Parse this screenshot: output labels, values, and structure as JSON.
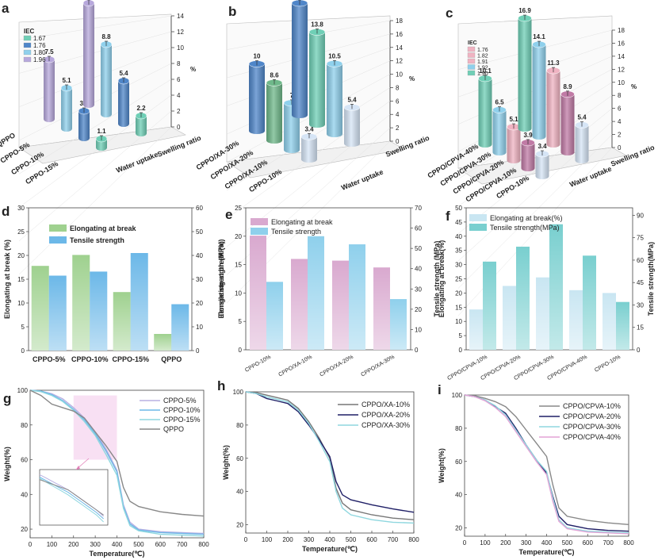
{
  "colors": {
    "purple": "#b7a8dc",
    "blue": "#4f86c9",
    "lightblue": "#8fd0ec",
    "teal": "#6fcfb6",
    "green": "#6fb88a",
    "pink": "#f0b3c2",
    "rose": "#c07aa5",
    "paleblue": "#d6e5f6",
    "elong_d": "#9fd18f",
    "tens_d": "#6cb8e8",
    "elong_e": "#d9a9cf",
    "tens_e": "#8fd0ec",
    "elong_f": "#c9e6f2",
    "tens_f": "#79cfcf",
    "pinkshade": "#f6d8f0"
  },
  "chart_data": [
    {
      "id": "a",
      "panel_label": "a",
      "type": "bar",
      "legend_title": "IEC",
      "legend": [
        "1.67",
        "1.76",
        "1.80",
        "1.96"
      ],
      "categories": [
        "QPPO",
        "CPPO-5%",
        "CPPO-10%",
        "CPPO-15%"
      ],
      "series": [
        {
          "name": "Water uptake",
          "values": [
            7.5,
            5.1,
            3.4,
            1.1
          ]
        },
        {
          "name": "Swelling ratio",
          "values": [
            12.81,
            8.8,
            5.4,
            2.2
          ]
        }
      ],
      "ylabel": "%",
      "ylim": [
        0,
        14
      ],
      "yticks": [
        0,
        2,
        4,
        6,
        8,
        10,
        12,
        14
      ]
    },
    {
      "id": "b",
      "panel_label": "b",
      "type": "bar",
      "categories": [
        "CPPO/XA-30%",
        "CPPO/XA-20%",
        "CPPO/XA-10%",
        "CPPO-10%"
      ],
      "series": [
        {
          "name": "Water uptake",
          "values": [
            10,
            8.6,
            7,
            3.4
          ]
        },
        {
          "name": "Swelling ratio",
          "values": [
            16.7,
            13.8,
            10.5,
            5.4
          ]
        }
      ],
      "ylabel": "%",
      "ylim": [
        0,
        18
      ],
      "yticks": [
        0,
        2,
        4,
        6,
        8,
        10,
        12,
        14,
        16,
        18
      ]
    },
    {
      "id": "c",
      "panel_label": "c",
      "type": "bar",
      "legend_title": "IEC",
      "legend": [
        "1.76",
        "1.82",
        "1.91",
        "1.92",
        "1.90"
      ],
      "categories": [
        "CPPO/CPVA-40%",
        "CPPO/CPVA-30%",
        "CPPO/CPVA-20%",
        "CPPO/CPVA-10%",
        "CPPO-10%"
      ],
      "series": [
        {
          "name": "Water uptake",
          "values": [
            10.1,
            6.5,
            5.1,
            3.9,
            3.4
          ]
        },
        {
          "name": "Swelling ratio",
          "values": [
            16.9,
            14.1,
            11.3,
            8.9,
            5.4
          ]
        }
      ],
      "ylabel": "%",
      "ylim": [
        0,
        18
      ],
      "yticks": [
        0,
        2,
        4,
        6,
        8,
        10,
        12,
        14,
        16,
        18
      ]
    },
    {
      "id": "d",
      "panel_label": "d",
      "type": "bar",
      "categories": [
        "CPPO-5%",
        "CPPO-10%",
        "CPPO-15%",
        "QPPO"
      ],
      "series": [
        {
          "name": "Elongating at break",
          "axis": "left",
          "values": [
            17.8,
            20.1,
            12.3,
            3.5
          ]
        },
        {
          "name": "Tensile strength",
          "axis": "right",
          "values": [
            31.5,
            33.2,
            41,
            19.5
          ]
        }
      ],
      "ylabel": "Elongating at break (%)",
      "ylim": [
        0,
        30
      ],
      "yticks": [
        0,
        5,
        10,
        15,
        20,
        25,
        30
      ],
      "y2label": "Tensile strength (MPa)",
      "y2lim": [
        0,
        60
      ],
      "y2ticks": [
        0,
        10,
        20,
        30,
        40,
        50,
        60
      ]
    },
    {
      "id": "e",
      "panel_label": "e",
      "type": "bar",
      "categories": [
        "CPPO-10%",
        "CPPO/XA-10%",
        "CPPO/XA-20%",
        "CPPO/XA-30%"
      ],
      "series": [
        {
          "name": "Elongating at break",
          "axis": "left",
          "values": [
            20.1,
            16,
            15.7,
            14.5
          ]
        },
        {
          "name": "Tensile strength",
          "axis": "right",
          "values": [
            33.5,
            56,
            52,
            25
          ]
        }
      ],
      "ylabel": "Elongating at break (%)",
      "ylim": [
        0,
        25
      ],
      "yticks": [
        0,
        5,
        10,
        15,
        20,
        25
      ],
      "y2label": "Tensile strength (MPa)",
      "y2lim": [
        0,
        70
      ],
      "y2ticks": [
        0,
        10,
        20,
        30,
        40,
        50,
        60,
        70
      ]
    },
    {
      "id": "f",
      "panel_label": "f",
      "type": "bar",
      "categories": [
        "CPPO/CPVA-10%",
        "CPPO/CPVA-20%",
        "CPPO/CPVA-30%",
        "CPPO/CPVA-40%",
        "CPPO-10%"
      ],
      "series": [
        {
          "name": "Elongating at break(%)",
          "axis": "left",
          "values": [
            14.2,
            22.5,
            25.5,
            21,
            20
          ]
        },
        {
          "name": "Tensile strength(MPa)",
          "axis": "right",
          "values": [
            59,
            69,
            84,
            63,
            32
          ]
        }
      ],
      "ylabel": "Elongating at break(%)",
      "ylim": [
        0,
        50
      ],
      "yticks": [
        0,
        5,
        10,
        15,
        20,
        25,
        30,
        35,
        40,
        45,
        50
      ],
      "y2label": "Tensile strength(MPa)",
      "y2lim": [
        0,
        95
      ],
      "y2ticks": [
        0,
        15,
        30,
        45,
        60,
        75,
        90
      ]
    },
    {
      "id": "g",
      "panel_label": "g",
      "type": "line",
      "xlabel": "Temperature(℃)",
      "ylabel": "Weight(%)",
      "xlim": [
        0,
        800
      ],
      "xticks": [
        0,
        100,
        200,
        300,
        400,
        500,
        600,
        700,
        800
      ],
      "ylim": [
        15,
        100
      ],
      "yticks": [
        20,
        40,
        60,
        80,
        100
      ],
      "series": [
        {
          "name": "CPPO-5%",
          "color": "#b8b0e2",
          "x": [
            0,
            50,
            100,
            150,
            200,
            250,
            300,
            350,
            400,
            430,
            460,
            500,
            600,
            700,
            800
          ],
          "y": [
            100,
            99.5,
            98,
            95,
            90,
            84,
            76,
            66,
            54,
            34,
            24,
            20,
            18.5,
            18,
            17.5
          ]
        },
        {
          "name": "CPPO-10%",
          "color": "#6cb8e8",
          "x": [
            0,
            50,
            100,
            150,
            200,
            250,
            300,
            350,
            400,
            430,
            460,
            500,
            600,
            700,
            800
          ],
          "y": [
            100,
            99.5,
            97.5,
            94,
            89,
            83,
            75,
            65,
            53,
            33,
            23,
            19.5,
            18,
            17.5,
            17
          ]
        },
        {
          "name": "CPPO-15%",
          "color": "#8fd7df",
          "x": [
            0,
            50,
            100,
            150,
            200,
            250,
            300,
            350,
            400,
            430,
            460,
            500,
            600,
            700,
            800
          ],
          "y": [
            100,
            99.2,
            97,
            93.5,
            88.5,
            82,
            74,
            63,
            51,
            32,
            22,
            19,
            17,
            16.5,
            16
          ]
        },
        {
          "name": "QPPO",
          "color": "#888888",
          "x": [
            0,
            50,
            100,
            150,
            200,
            250,
            300,
            350,
            400,
            430,
            460,
            500,
            600,
            700,
            800
          ],
          "y": [
            100,
            97,
            92,
            90,
            88,
            84,
            76,
            68,
            59,
            44,
            36,
            33,
            30,
            28.5,
            27.5
          ]
        }
      ]
    },
    {
      "id": "h",
      "panel_label": "h",
      "type": "line",
      "xlabel": "Temperature(℃)",
      "ylabel": "Weight(%)",
      "xlim": [
        0,
        800
      ],
      "xticks": [
        0,
        100,
        200,
        300,
        400,
        500,
        600,
        700,
        800
      ],
      "ylim": [
        15,
        100
      ],
      "yticks": [
        20,
        40,
        60,
        80,
        100
      ],
      "series": [
        {
          "name": "CPPO/XA-10%",
          "color": "#777777",
          "x": [
            0,
            50,
            100,
            150,
            200,
            250,
            300,
            350,
            400,
            430,
            460,
            500,
            600,
            700,
            800
          ],
          "y": [
            100,
            99.5,
            98,
            96.5,
            95,
            90,
            82,
            72,
            60,
            42,
            33,
            29,
            26,
            24,
            23
          ]
        },
        {
          "name": "CPPO/XA-20%",
          "color": "#1f1f66",
          "x": [
            0,
            50,
            100,
            150,
            200,
            250,
            300,
            350,
            400,
            430,
            460,
            500,
            600,
            700,
            800
          ],
          "y": [
            100,
            99,
            96,
            94.5,
            93,
            88,
            80,
            71,
            61,
            46,
            38,
            35,
            32,
            29.5,
            27.5
          ]
        },
        {
          "name": "CPPO/XA-30%",
          "color": "#8fd7df",
          "x": [
            0,
            50,
            100,
            150,
            200,
            250,
            300,
            350,
            400,
            430,
            460,
            500,
            600,
            700,
            800
          ],
          "y": [
            100,
            99,
            97,
            95.5,
            94,
            89,
            81,
            70,
            58,
            40,
            30,
            26,
            23,
            21.5,
            21
          ]
        }
      ]
    },
    {
      "id": "i",
      "panel_label": "i",
      "type": "line",
      "xlabel": "Temperature(℃)",
      "ylabel": "Weight(%)",
      "xlim": [
        0,
        800
      ],
      "xticks": [
        0,
        100,
        200,
        300,
        400,
        500,
        600,
        700,
        800
      ],
      "ylim": [
        15,
        100
      ],
      "yticks": [
        20,
        40,
        60,
        80,
        100
      ],
      "series": [
        {
          "name": "CPPO/CPVA-10%",
          "color": "#888888",
          "x": [
            0,
            50,
            100,
            150,
            200,
            250,
            300,
            350,
            400,
            430,
            460,
            500,
            600,
            700,
            800
          ],
          "y": [
            100,
            99.5,
            98,
            96,
            93,
            87,
            79,
            71,
            63,
            46,
            32,
            27,
            24.5,
            23,
            22
          ]
        },
        {
          "name": "CPPO/CPVA-20%",
          "color": "#1f1f66",
          "x": [
            0,
            50,
            100,
            150,
            200,
            250,
            300,
            350,
            400,
            430,
            460,
            500,
            600,
            700,
            800
          ],
          "y": [
            100,
            99,
            97,
            93,
            89,
            80,
            70,
            61,
            53,
            39,
            27,
            22,
            19.5,
            18.5,
            18
          ]
        },
        {
          "name": "CPPO/CPVA-30%",
          "color": "#8fd7df",
          "x": [
            0,
            50,
            100,
            150,
            200,
            250,
            300,
            350,
            400,
            430,
            460,
            500,
            600,
            700,
            800
          ],
          "y": [
            100,
            99,
            97,
            93.5,
            88,
            79,
            70,
            61,
            54,
            38,
            25,
            20,
            18,
            17.5,
            17
          ]
        },
        {
          "name": "CPPO/CPVA-40%",
          "color": "#e3a4d6",
          "x": [
            0,
            50,
            100,
            150,
            200,
            250,
            300,
            350,
            400,
            430,
            460,
            500,
            600,
            700,
            800
          ],
          "y": [
            100,
            99,
            96.5,
            92.5,
            87,
            78,
            69,
            60,
            52,
            36,
            24,
            19.5,
            17.5,
            17,
            16.5
          ]
        }
      ]
    }
  ]
}
